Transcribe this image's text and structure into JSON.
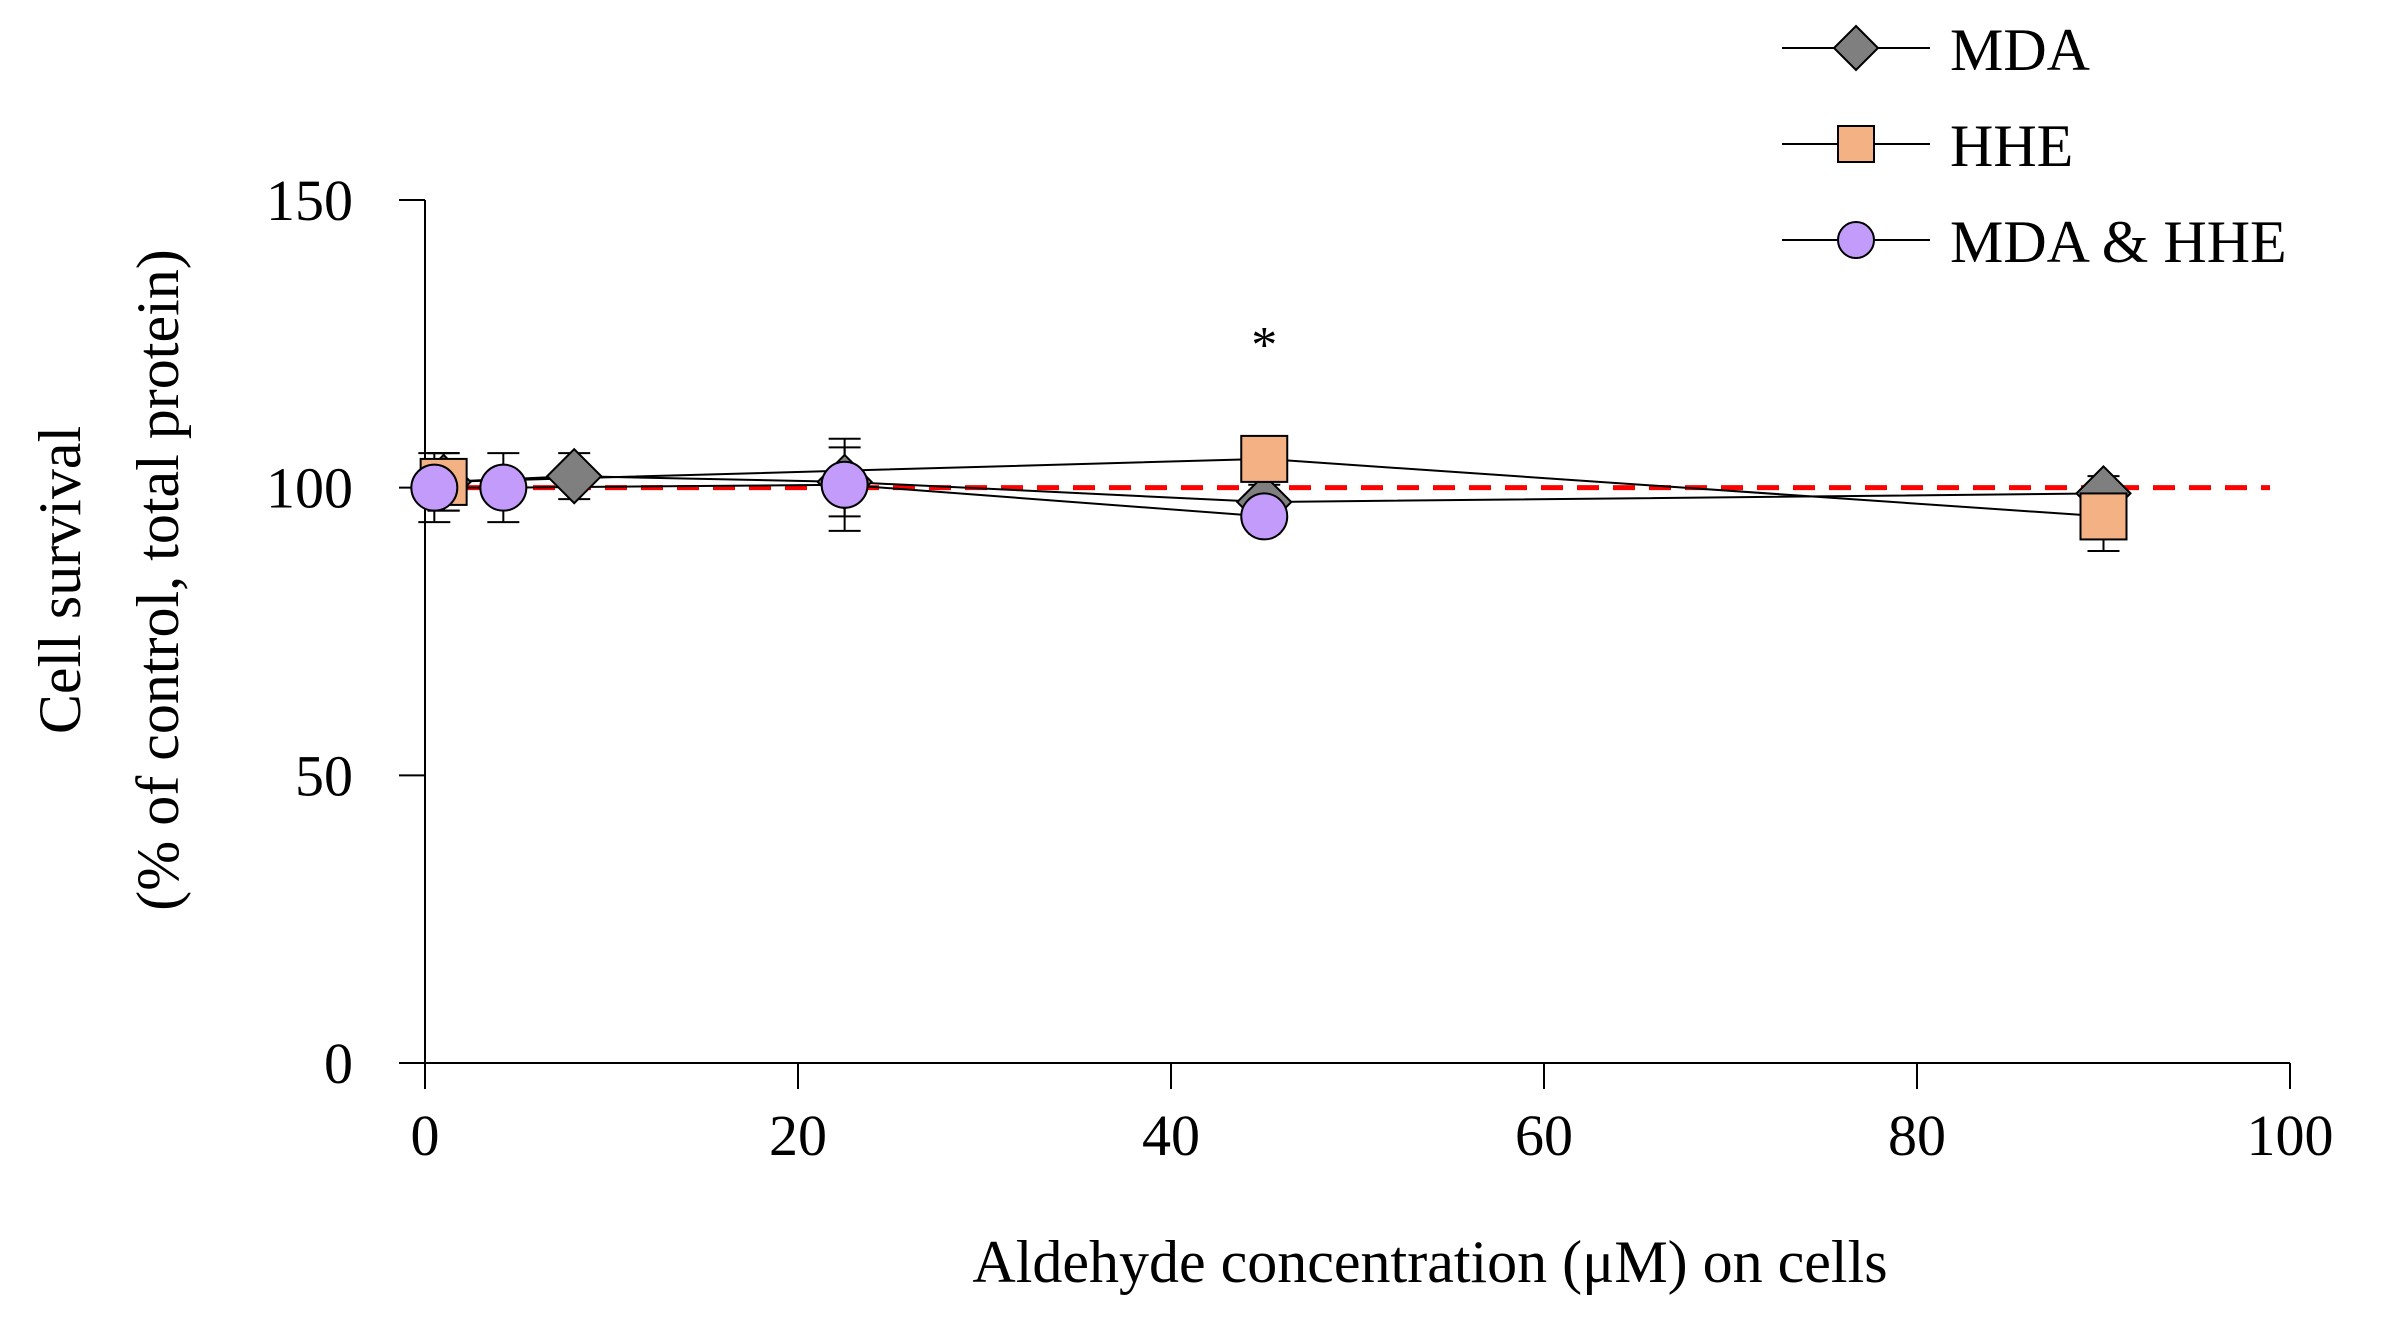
{
  "chart_data": {
    "type": "line",
    "title": "",
    "xlabel": "Aldehyde concentration (μM) on cells",
    "ylabel_line1": "Cell survival",
    "ylabel_line2": "(% of control, total protein)",
    "xlim": [
      0,
      100
    ],
    "ylim": [
      0,
      150
    ],
    "xticks": [
      "0",
      "20",
      "40",
      "60",
      "80",
      "100"
    ],
    "yticks": [
      "0",
      "50",
      "100",
      "150"
    ],
    "reference_line": {
      "y": 100,
      "color": "#ff0000",
      "style": "dashed"
    },
    "legend_position": "top-right",
    "series": [
      {
        "name": "MDA",
        "marker": "diamond",
        "color": "#7f7f7f",
        "x": [
          1,
          8,
          22.5,
          45,
          90
        ],
        "y": [
          101,
          102,
          101,
          97.5,
          99
        ],
        "err": [
          5,
          4,
          6,
          3,
          3
        ]
      },
      {
        "name": "HHE",
        "marker": "square",
        "color": "#f4b183",
        "x": [
          1,
          45,
          90
        ],
        "y": [
          101,
          105,
          95
        ],
        "err": [
          5,
          3,
          6
        ]
      },
      {
        "name": "MDA & HHE",
        "marker": "circle",
        "color": "#c39bfa",
        "x": [
          0.5,
          4.2,
          22.5,
          45
        ],
        "y": [
          100,
          100,
          100.5,
          95
        ],
        "err": [
          6,
          6,
          8,
          3
        ]
      }
    ],
    "annotations": [
      {
        "text": "*",
        "x": 45,
        "y": 125
      }
    ]
  }
}
